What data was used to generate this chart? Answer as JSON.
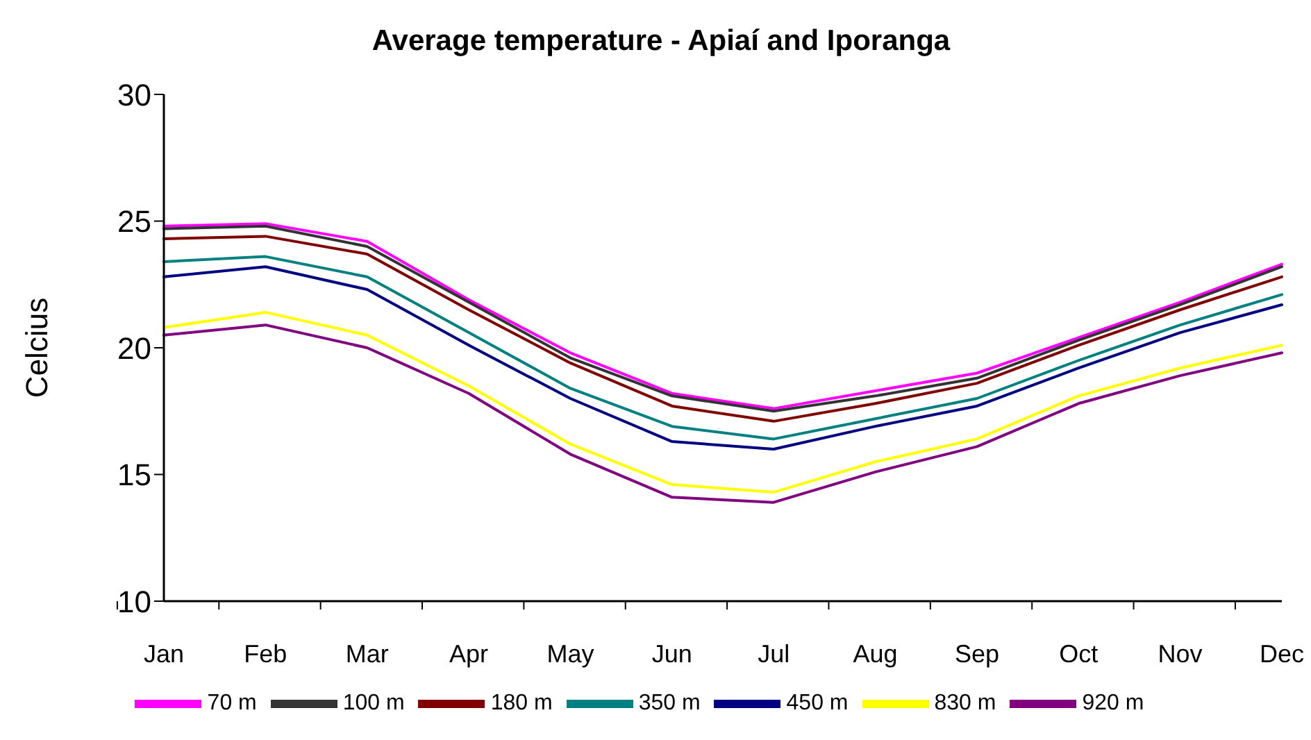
{
  "chart_data": {
    "type": "line",
    "title": "Average temperature - Apiaí and Iporanga",
    "ylabel": "Celcius",
    "categories": [
      "Jan",
      "Feb",
      "Mar",
      "Apr",
      "May",
      "Jun",
      "Jul",
      "Aug",
      "Sep",
      "Oct",
      "Nov",
      "Dec"
    ],
    "series": [
      {
        "name": "70 m",
        "color": "#ff00ff",
        "values": [
          24.8,
          24.9,
          24.2,
          21.9,
          19.8,
          18.2,
          17.6,
          18.3,
          19.0,
          20.4,
          21.8,
          23.3
        ]
      },
      {
        "name": "100 m",
        "color": "#333333",
        "values": [
          24.7,
          24.8,
          24.0,
          21.8,
          19.6,
          18.1,
          17.5,
          18.1,
          18.8,
          20.3,
          21.7,
          23.2
        ]
      },
      {
        "name": "180 m",
        "color": "#800000",
        "values": [
          24.3,
          24.4,
          23.7,
          21.5,
          19.4,
          17.7,
          17.1,
          17.8,
          18.6,
          20.1,
          21.5,
          22.8
        ]
      },
      {
        "name": "350 m",
        "color": "#008080",
        "values": [
          23.4,
          23.6,
          22.8,
          20.6,
          18.4,
          16.9,
          16.4,
          17.2,
          18.0,
          19.5,
          20.9,
          22.1
        ]
      },
      {
        "name": "450 m",
        "color": "#000080",
        "values": [
          22.8,
          23.2,
          22.3,
          20.1,
          18.0,
          16.3,
          16.0,
          16.9,
          17.7,
          19.2,
          20.6,
          21.7
        ]
      },
      {
        "name": "830 m",
        "color": "#ffff00",
        "values": [
          20.8,
          21.4,
          20.5,
          18.5,
          16.2,
          14.6,
          14.3,
          15.5,
          16.4,
          18.1,
          19.2,
          20.1
        ]
      },
      {
        "name": "920 m",
        "color": "#800080",
        "values": [
          20.5,
          20.9,
          20.0,
          18.2,
          15.8,
          14.1,
          13.9,
          15.1,
          16.1,
          17.8,
          18.9,
          19.8
        ]
      }
    ],
    "ylim": [
      10,
      30
    ],
    "yticks": [
      10,
      15,
      20,
      25,
      30
    ],
    "grid": false,
    "legend": "bottom",
    "marker": "none",
    "line_style": "solid"
  }
}
